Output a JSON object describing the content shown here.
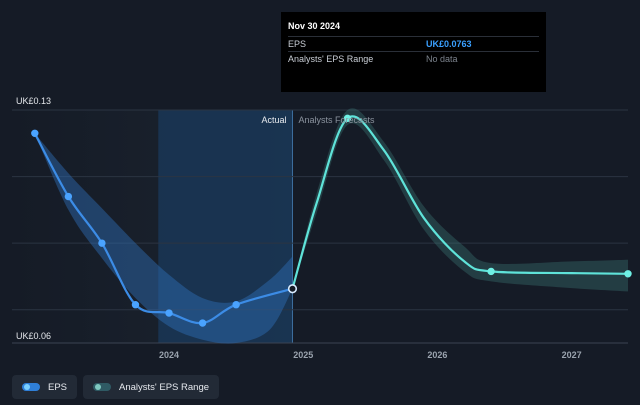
{
  "tooltip": {
    "date": "Nov 30 2024",
    "rows": [
      {
        "label": "EPS",
        "value": "UK£0.0763"
      },
      {
        "label": "Analysts' EPS Range",
        "value": "No data"
      }
    ]
  },
  "legend": {
    "eps_label": "EPS",
    "range_label": "Analysts' EPS Range"
  },
  "colors": {
    "background": "#151b26",
    "eps_line": "#3c8ce6",
    "forecast_line": "#5fe3d9",
    "actual_shade": "#1a3a5c"
  },
  "chart_data": {
    "type": "line",
    "y_unit": "UK£",
    "ylim": [
      0.06,
      0.13
    ],
    "y_ticks": [
      {
        "value": 0.13,
        "label": "UK£0.13"
      },
      {
        "value": 0.06,
        "label": "UK£0.06"
      }
    ],
    "x_ticks": [
      {
        "value": 2024.0,
        "label": "2024"
      },
      {
        "value": 2025.0,
        "label": "2025"
      },
      {
        "value": 2026.0,
        "label": "2026"
      },
      {
        "value": 2027.0,
        "label": "2027"
      }
    ],
    "xlim": [
      2022.83,
      2027.42
    ],
    "divider_x": 2024.92,
    "highlight_start_x": 2023.92,
    "section_labels": {
      "left": "Actual",
      "right": "Analysts Forecasts"
    },
    "series": [
      {
        "name": "EPS",
        "points": [
          {
            "x": 2023.0,
            "y": 0.123
          },
          {
            "x": 2023.25,
            "y": 0.104
          },
          {
            "x": 2023.5,
            "y": 0.09
          },
          {
            "x": 2023.75,
            "y": 0.0715
          },
          {
            "x": 2024.0,
            "y": 0.069
          },
          {
            "x": 2024.25,
            "y": 0.066
          },
          {
            "x": 2024.5,
            "y": 0.0715
          },
          {
            "x": 2024.92,
            "y": 0.0763
          }
        ],
        "range_band": {
          "x": [
            2023.0,
            2023.25,
            2023.5,
            2023.75,
            2024.0,
            2024.25,
            2024.5,
            2024.75,
            2024.92
          ],
          "upper": [
            0.123,
            0.111,
            0.1005,
            0.09,
            0.0805,
            0.0735,
            0.0725,
            0.079,
            0.086
          ],
          "lower": [
            0.123,
            0.1,
            0.0855,
            0.0735,
            0.065,
            0.061,
            0.06,
            0.064,
            0.0763
          ]
        }
      },
      {
        "name": "Analysts Forecasts",
        "points": [
          {
            "x": 2024.92,
            "y": 0.0763
          },
          {
            "x": 2025.1,
            "y": 0.102
          },
          {
            "x": 2025.33,
            "y": 0.1275
          },
          {
            "x": 2025.6,
            "y": 0.118
          },
          {
            "x": 2025.9,
            "y": 0.0975
          },
          {
            "x": 2026.2,
            "y": 0.0845
          },
          {
            "x": 2026.4,
            "y": 0.0815
          },
          {
            "x": 2027.0,
            "y": 0.081
          },
          {
            "x": 2027.42,
            "y": 0.0808
          }
        ],
        "range_band": {
          "x": [
            2024.92,
            2025.1,
            2025.33,
            2025.6,
            2025.9,
            2026.2,
            2026.4,
            2027.0,
            2027.42
          ],
          "upper": [
            0.0763,
            0.105,
            0.13,
            0.1205,
            0.101,
            0.089,
            0.084,
            0.0845,
            0.085
          ],
          "lower": [
            0.0763,
            0.099,
            0.1255,
            0.115,
            0.094,
            0.0815,
            0.0785,
            0.0765,
            0.0755
          ]
        }
      }
    ]
  }
}
